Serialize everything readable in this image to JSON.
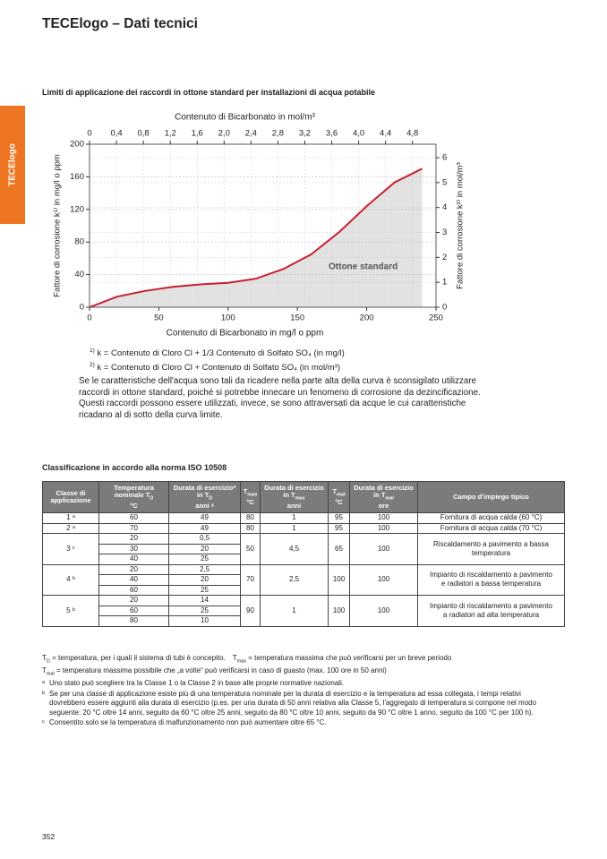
{
  "header": {
    "title": "TECElogo – Dati tecnici",
    "tab": "TECElogo"
  },
  "section1": {
    "title": "Limiti di applicazione dei raccordi in ottone standard per installazioni di acqua potabile"
  },
  "chart_data": {
    "type": "line",
    "title": "Contenuto di Bicarbonato in mol/m³",
    "xlabel": "Contenuto di Bicarbonato in mg/l o ppm",
    "ylabel": "Fattore di corrosione k¹⁾ in mg/l o ppm",
    "y2label": "Fattore di corrosione k²⁾ in mol/m³",
    "annotation": "Ottone standard",
    "x": [
      0,
      20,
      40,
      60,
      80,
      100,
      120,
      140,
      160,
      180,
      200,
      220,
      240
    ],
    "series": [
      {
        "name": "Ottone standard",
        "color": "#c8202f",
        "fill": "#e2e2e2",
        "values": [
          0,
          13,
          20,
          25,
          28,
          30,
          35,
          47,
          65,
          92,
          124,
          153,
          170
        ]
      }
    ],
    "xlim": [
      0,
      250
    ],
    "xticks": [
      0,
      50,
      100,
      150,
      200,
      250
    ],
    "ylim": [
      0,
      200
    ],
    "yticks": [
      0,
      40,
      80,
      120,
      160,
      200
    ],
    "y2lim": [
      0,
      6.54
    ],
    "y2ticks": [
      0,
      1,
      2,
      3,
      4,
      5,
      6
    ],
    "x2lim": [
      0,
      5.15
    ],
    "x2ticks": [
      0,
      {
        "value": 0.4,
        "label": "0,4"
      },
      {
        "value": 0.8,
        "label": "0,8"
      },
      {
        "value": 1.2,
        "label": "1,2"
      },
      {
        "value": 1.6,
        "label": "1,6"
      },
      {
        "value": 2.0,
        "label": "2,0"
      },
      {
        "value": 2.4,
        "label": "2,4"
      },
      {
        "value": 2.8,
        "label": "2,8"
      },
      {
        "value": 3.2,
        "label": "3,2"
      },
      {
        "value": 3.6,
        "label": "3,6"
      },
      {
        "value": 4.0,
        "label": "4,0"
      },
      {
        "value": 4.4,
        "label": "4,4"
      },
      {
        "value": 4.8,
        "label": "4,8"
      }
    ],
    "grid": true
  },
  "chart_notes": [
    {
      "mark": "1)",
      "text": "k = Contenuto di Cloro Cl + 1/3 Contenuto di Solfato SO₄ (in mg/l)"
    },
    {
      "mark": "2)",
      "text": "k = Contenuto di Cloro Cl + Contenuto di Solfato SO₄ (in mol/m³)"
    }
  ],
  "paragraph": "Se le caratteristiche dell'acqua sono tali da ricadere nella parte alta della curva è sconsigilato utilizzare raccordi in ottone standard, poiché si potrebbe innecare un fenomeno di corrosione da dezincificazione. Questi raccordi possono essere utilizzati, invece, se sono attraversati da acque le cui caratteristiche ricadano al di sotto della curva limite.",
  "section2": {
    "title": "Classificazione in accordo alla norma ISO 10508"
  },
  "table": {
    "header": [
      {
        "text": "Classe di applicazione"
      },
      {
        "text": "Temperatura nominale T",
        "sub": "D",
        "unit": "°C"
      },
      {
        "text": "Durata di esercizio* in T",
        "sub": "D",
        "unit": "anni ᵃ"
      },
      {
        "text": "T",
        "sub": "max",
        "unit": "°C"
      },
      {
        "text": "Durata di esercizio in T",
        "sub": "max",
        "unit": "anni"
      },
      {
        "text": "T",
        "sub": "mal",
        "unit": "°C"
      },
      {
        "text": "Durata di esercizio in T",
        "sub": "mal",
        "unit": "ore"
      },
      {
        "text": "Campo d'impiego tipico"
      }
    ],
    "groups": [
      {
        "class": "1 ᵃ",
        "rows": [
          [
            60,
            49
          ]
        ],
        "tmax": 80,
        "durata_tmax": 1,
        "tmal": 95,
        "durata_tmal": 100,
        "campo": "Fornitura di acqua calda (60 °C)"
      },
      {
        "class": "2 ᵃ",
        "rows": [
          [
            70,
            49
          ]
        ],
        "tmax": 80,
        "durata_tmax": 1,
        "tmal": 95,
        "durata_tmal": 100,
        "campo": "Fornitura di acqua calda (70 °C)"
      },
      {
        "class": "3 ᶜ",
        "rows": [
          [
            20,
            "0,5"
          ],
          [
            30,
            20
          ],
          [
            40,
            25
          ]
        ],
        "tmax": 50,
        "durata_tmax": "4,5",
        "tmal": 65,
        "durata_tmal": 100,
        "campo": "Riscaldamento a pavimento a bassa temperatura"
      },
      {
        "class": "4 ᵇ",
        "rows": [
          [
            20,
            "2,5"
          ],
          [
            40,
            20
          ],
          [
            60,
            25
          ]
        ],
        "tmax": 70,
        "durata_tmax": "2,5",
        "tmal": 100,
        "durata_tmal": 100,
        "campo": "Impianto di riscaldamento a pavimento e radiatori a bassa temperatura"
      },
      {
        "class": "5 ᵇ",
        "rows": [
          [
            20,
            14
          ],
          [
            60,
            25
          ],
          [
            80,
            10
          ]
        ],
        "tmax": 90,
        "durata_tmax": 1,
        "tmal": 100,
        "durata_tmal": 100,
        "campo": "Impianto di riscaldamento a pavimento a radiatori ad alta temperatura"
      }
    ]
  },
  "definitions": [
    {
      "symbol": "T",
      "sub": "D",
      "text": " = temperatura, per i quali il sistema di tubi è concepito."
    },
    {
      "symbol": "T",
      "sub": "max",
      "text": " = temperatura massima che può verificarsi per un breve periodo"
    },
    {
      "symbol": "T",
      "sub": "mal",
      "text": " = temperatura massima possibile che „a volte“ può verificarsi in caso di guasto (max. 100 ore in 50 anni)"
    }
  ],
  "footnotes": [
    {
      "mark": "ᵃ",
      "text": "Uno stato può scegliere tra la Classe 1 o la Classe 2 in base alle proprie normative nazionali."
    },
    {
      "mark": "ᵇ",
      "text": "Se per una classe di applicazione esiste più di una temperatura nominale per la durata di esercizio e la temperatura ad essa collegata, i tempi relativi dovrebbero essere aggiunti alla durata di esercizio (p.es. per una durata di 50 anni relativa alla Classe 5, l'aggregato di temperatura si compone nel modo seguente: 20 °C oltre 14 anni, seguito da 60 °C oltre 25 anni, seguito da 80 °C oltre 10 anni, seguito da 90 °C oltre 1 anno, seguito da 100 °C per 100 h)."
    },
    {
      "mark": "ᶜ",
      "text": "Consentito solo se la temperatura di malfunzionamento non può aumentare oltre 65 °C."
    }
  ],
  "page_number": "352"
}
